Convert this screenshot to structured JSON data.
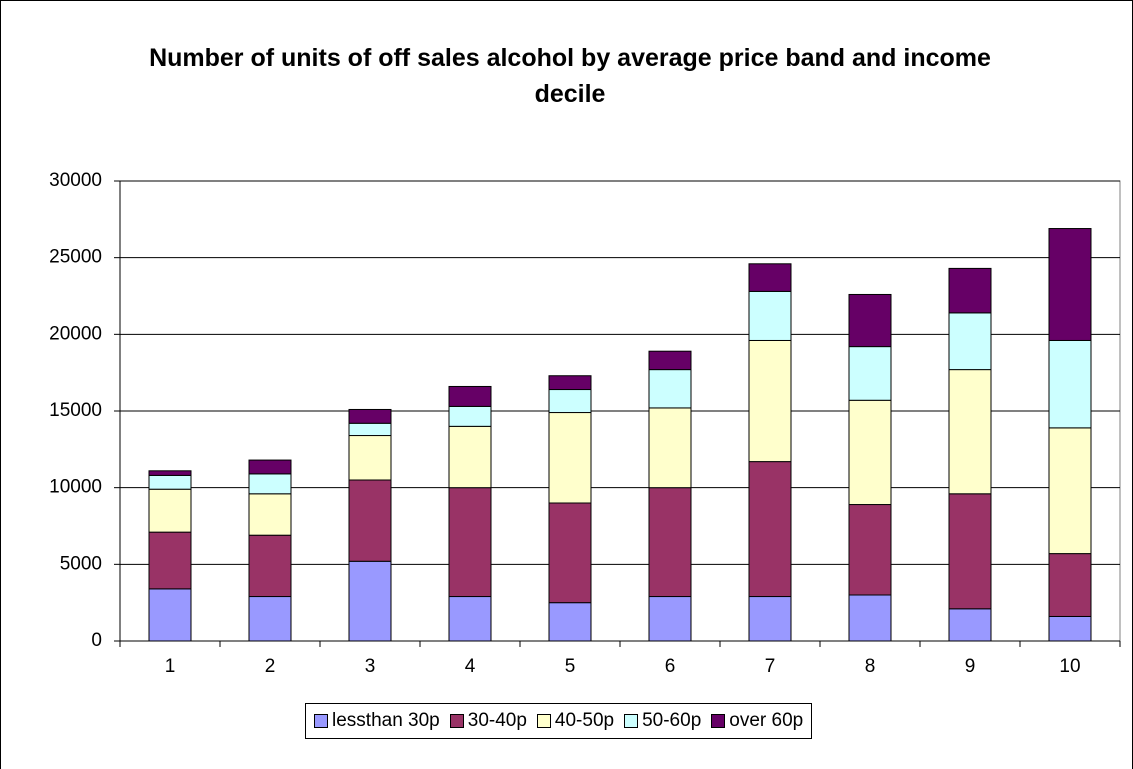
{
  "chart_data": {
    "type": "stacked_bar",
    "title": "Number of units of off sales alcohol by average price band and income decile",
    "categories": [
      "1",
      "2",
      "3",
      "4",
      "5",
      "6",
      "7",
      "8",
      "9",
      "10"
    ],
    "series": [
      {
        "name": "lessthan 30p",
        "color": "#9999ff",
        "values": [
          3400,
          2900,
          5200,
          2900,
          2500,
          2900,
          2900,
          3000,
          2100,
          1600
        ]
      },
      {
        "name": "30-40p",
        "color": "#993366",
        "values": [
          3700,
          4000,
          5300,
          7100,
          6500,
          7100,
          8800,
          5900,
          7500,
          4100
        ]
      },
      {
        "name": "40-50p",
        "color": "#ffffcc",
        "values": [
          2800,
          2700,
          2900,
          4000,
          5900,
          5200,
          7900,
          6800,
          8100,
          8200
        ]
      },
      {
        "name": "50-60p",
        "color": "#ccffff",
        "values": [
          900,
          1300,
          800,
          1300,
          1500,
          2500,
          3200,
          3500,
          3700,
          5700
        ]
      },
      {
        "name": "over 60p",
        "color": "#660066",
        "values": [
          300,
          900,
          900,
          1300,
          900,
          1200,
          1800,
          3400,
          2900,
          7300
        ]
      }
    ],
    "ylim": [
      0,
      30000
    ],
    "yticks": [
      0,
      5000,
      10000,
      15000,
      20000,
      25000,
      30000
    ],
    "grid": true,
    "legend": "bottom"
  }
}
